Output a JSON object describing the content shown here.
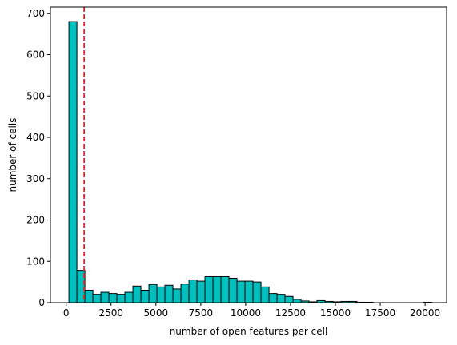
{
  "chart_data": {
    "type": "bar",
    "title": "",
    "xlabel": "number of open features per cell",
    "ylabel": "number of cells",
    "xlim": [
      -880,
      21200
    ],
    "ylim": [
      0,
      715
    ],
    "x_ticks": [
      0,
      2500,
      5000,
      7500,
      10000,
      12500,
      15000,
      17500,
      20000
    ],
    "y_ticks": [
      0,
      100,
      200,
      300,
      400,
      500,
      600,
      700
    ],
    "grid": false,
    "bar_color": "#00bfbf",
    "bar_edge_color": "#000000",
    "threshold_line": {
      "x": 1000,
      "color": "#d62728",
      "style": "dashed"
    },
    "bins": {
      "start": 150,
      "width": 446,
      "counts": [
        680,
        78,
        30,
        20,
        25,
        22,
        20,
        25,
        40,
        30,
        44,
        38,
        42,
        33,
        45,
        55,
        52,
        63,
        63,
        63,
        59,
        52,
        52,
        50,
        38,
        22,
        20,
        15,
        8,
        4,
        2,
        5,
        3,
        2,
        3,
        3,
        1,
        1,
        0,
        0,
        0,
        0,
        0,
        0,
        0,
        0,
        0,
        0,
        0,
        0,
        0,
        0,
        0,
        0,
        0,
        0,
        0,
        0,
        0,
        0,
        0,
        0,
        0,
        0,
        0,
        0,
        0,
        0,
        0,
        0,
        0,
        0,
        0,
        0,
        0,
        0,
        0,
        0,
        0,
        0,
        0,
        0,
        0,
        0,
        0,
        0,
        0,
        0,
        0,
        0,
        0,
        0,
        0,
        0,
        0
      ]
    },
    "extra_bars": [
      {
        "x": 16350,
        "count": 1
      },
      {
        "x": 20150,
        "count": 1
      }
    ]
  }
}
